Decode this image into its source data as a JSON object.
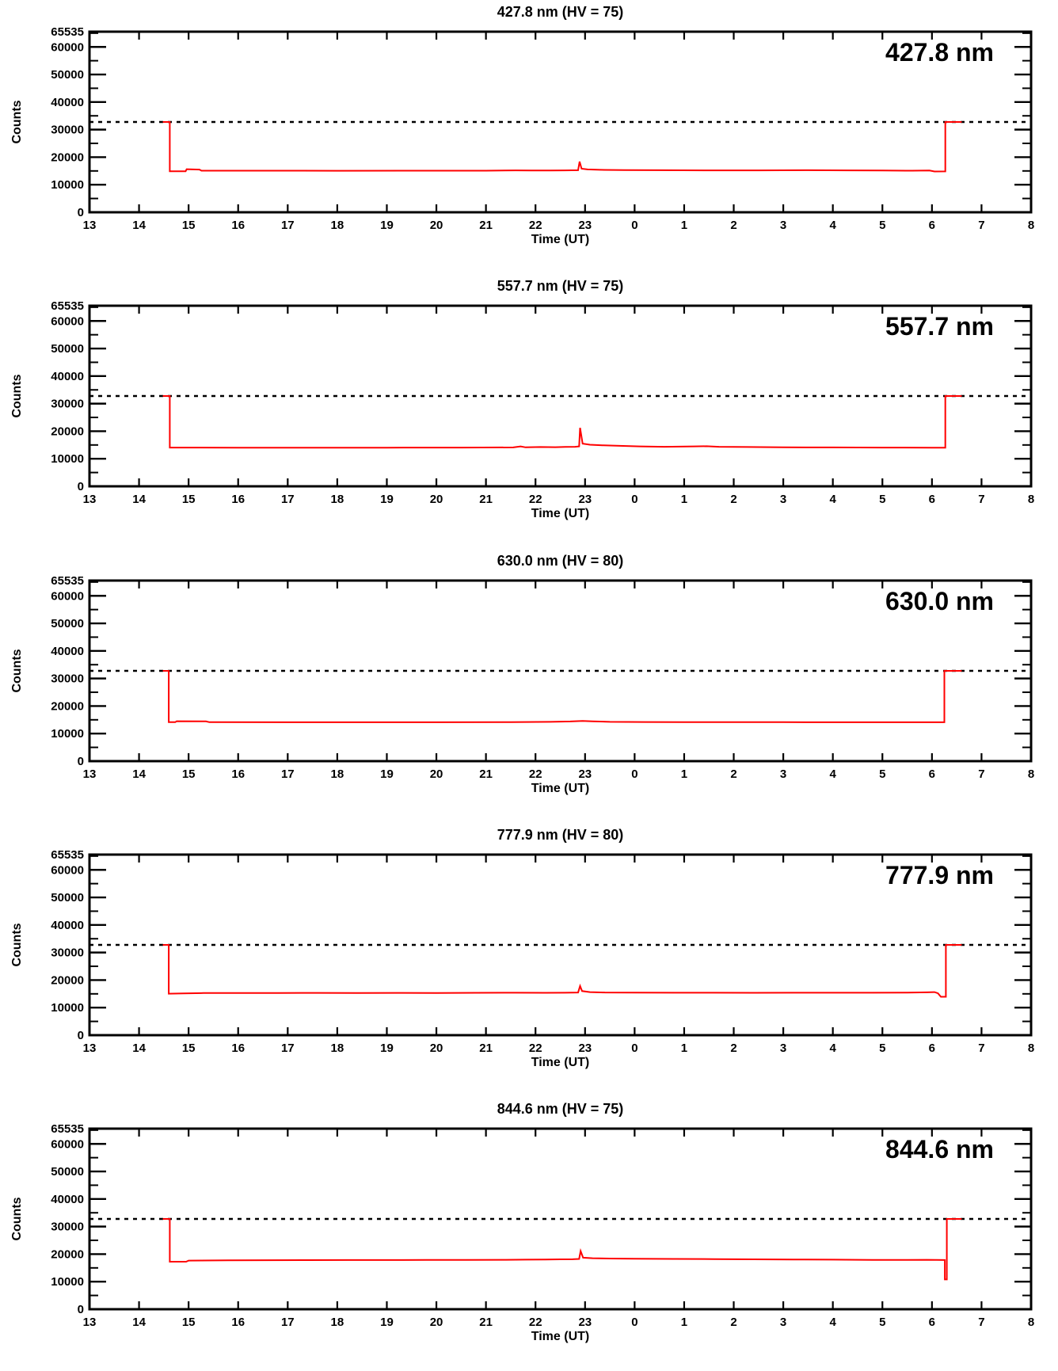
{
  "page": {
    "background": "#ffffff",
    "axis_color": "#000000",
    "dashed_line_color": "#000000"
  },
  "chart_data": [
    {
      "type": "line",
      "title": "427.8 nm (HV = 75)",
      "inplot_label": "427.8 nm",
      "wavelength_nm": 427.8,
      "hv": 75,
      "xlabel": "Time (UT)",
      "ylabel": "Counts",
      "x_tick_labels": [
        "13",
        "14",
        "15",
        "16",
        "17",
        "18",
        "19",
        "20",
        "21",
        "22",
        "23",
        "0",
        "1",
        "2",
        "3",
        "4",
        "5",
        "6",
        "7",
        "8"
      ],
      "x_hours": {
        "start": 13,
        "end": 32
      },
      "y_ticks": [
        0,
        10000,
        20000,
        30000,
        40000,
        50000,
        60000,
        65535
      ],
      "y_tick_labels": [
        "0",
        "10000",
        "20000",
        "30000",
        "40000",
        "50000",
        "60000",
        "65535"
      ],
      "ylim": [
        0,
        65535
      ],
      "y_minor_step": 5000,
      "grid": false,
      "saturation_line": 32767,
      "line_color": "#ff0000",
      "series": [
        {
          "name": "counts",
          "points": [
            [
              14.48,
              32767
            ],
            [
              14.62,
              32767
            ],
            [
              14.62,
              14900
            ],
            [
              14.94,
              14900
            ],
            [
              14.96,
              15650
            ],
            [
              15.22,
              15500
            ],
            [
              15.26,
              15100
            ],
            [
              16.5,
              15100
            ],
            [
              18,
              15060
            ],
            [
              19.5,
              15080
            ],
            [
              21,
              15100
            ],
            [
              21.6,
              15200
            ],
            [
              21.9,
              15150
            ],
            [
              22.3,
              15150
            ],
            [
              22.6,
              15200
            ],
            [
              22.86,
              15250
            ],
            [
              22.89,
              18400
            ],
            [
              22.93,
              15800
            ],
            [
              23.05,
              15550
            ],
            [
              23.3,
              15400
            ],
            [
              23.8,
              15300
            ],
            [
              24.5,
              15250
            ],
            [
              25.5,
              15200
            ],
            [
              26.5,
              15200
            ],
            [
              27.5,
              15250
            ],
            [
              28.3,
              15200
            ],
            [
              29,
              15150
            ],
            [
              29.6,
              15100
            ],
            [
              29.95,
              15150
            ],
            [
              30.05,
              14800
            ],
            [
              30.27,
              14820
            ],
            [
              30.27,
              32767
            ],
            [
              30.6,
              32767
            ]
          ]
        }
      ]
    },
    {
      "type": "line",
      "title": "557.7 nm (HV = 75)",
      "inplot_label": "557.7 nm",
      "wavelength_nm": 557.7,
      "hv": 75,
      "xlabel": "Time (UT)",
      "ylabel": "Counts",
      "x_tick_labels": [
        "13",
        "14",
        "15",
        "16",
        "17",
        "18",
        "19",
        "20",
        "21",
        "22",
        "23",
        "0",
        "1",
        "2",
        "3",
        "4",
        "5",
        "6",
        "7",
        "8"
      ],
      "x_hours": {
        "start": 13,
        "end": 32
      },
      "y_ticks": [
        0,
        10000,
        20000,
        30000,
        40000,
        50000,
        60000,
        65535
      ],
      "y_tick_labels": [
        "0",
        "10000",
        "20000",
        "30000",
        "40000",
        "50000",
        "60000",
        "65535"
      ],
      "ylim": [
        0,
        65535
      ],
      "y_minor_step": 5000,
      "grid": false,
      "saturation_line": 32767,
      "line_color": "#ff0000",
      "series": [
        {
          "name": "counts",
          "points": [
            [
              14.48,
              32767
            ],
            [
              14.62,
              32767
            ],
            [
              14.62,
              14050
            ],
            [
              16,
              14020
            ],
            [
              17.5,
              14000
            ],
            [
              19,
              14020
            ],
            [
              20.5,
              14050
            ],
            [
              21.55,
              14100
            ],
            [
              21.7,
              14500
            ],
            [
              21.8,
              14150
            ],
            [
              22.1,
              14250
            ],
            [
              22.4,
              14200
            ],
            [
              22.6,
              14300
            ],
            [
              22.8,
              14350
            ],
            [
              22.88,
              14500
            ],
            [
              22.9,
              21200
            ],
            [
              22.95,
              15500
            ],
            [
              23.1,
              15100
            ],
            [
              23.35,
              14900
            ],
            [
              23.7,
              14700
            ],
            [
              24.1,
              14500
            ],
            [
              24.6,
              14350
            ],
            [
              25.2,
              14500
            ],
            [
              25.45,
              14550
            ],
            [
              25.7,
              14350
            ],
            [
              26.3,
              14250
            ],
            [
              27,
              14150
            ],
            [
              28,
              14100
            ],
            [
              29,
              14060
            ],
            [
              30,
              14030
            ],
            [
              30.27,
              14030
            ],
            [
              30.27,
              32767
            ],
            [
              30.6,
              32767
            ]
          ]
        }
      ]
    },
    {
      "type": "line",
      "title": "630.0 nm (HV = 80)",
      "inplot_label": "630.0 nm",
      "wavelength_nm": 630.0,
      "hv": 80,
      "xlabel": "Time (UT)",
      "ylabel": "Counts",
      "x_tick_labels": [
        "13",
        "14",
        "15",
        "16",
        "17",
        "18",
        "19",
        "20",
        "21",
        "22",
        "23",
        "0",
        "1",
        "2",
        "3",
        "4",
        "5",
        "6",
        "7",
        "8"
      ],
      "x_hours": {
        "start": 13,
        "end": 32
      },
      "y_ticks": [
        0,
        10000,
        20000,
        30000,
        40000,
        50000,
        60000,
        65535
      ],
      "y_tick_labels": [
        "0",
        "10000",
        "20000",
        "30000",
        "40000",
        "50000",
        "60000",
        "65535"
      ],
      "ylim": [
        0,
        65535
      ],
      "y_minor_step": 5000,
      "grid": false,
      "saturation_line": 32767,
      "line_color": "#ff0000",
      "series": [
        {
          "name": "counts",
          "points": [
            [
              14.48,
              32767
            ],
            [
              14.6,
              32767
            ],
            [
              14.6,
              14150
            ],
            [
              14.73,
              14150
            ],
            [
              14.76,
              14480
            ],
            [
              15.35,
              14420
            ],
            [
              15.42,
              14150
            ],
            [
              17,
              14120
            ],
            [
              18.5,
              14100
            ],
            [
              20,
              14120
            ],
            [
              21.5,
              14150
            ],
            [
              22.3,
              14250
            ],
            [
              22.7,
              14400
            ],
            [
              22.95,
              14600
            ],
            [
              23.15,
              14450
            ],
            [
              23.5,
              14250
            ],
            [
              24.2,
              14200
            ],
            [
              25,
              14180
            ],
            [
              26,
              14150
            ],
            [
              27,
              14130
            ],
            [
              28,
              14120
            ],
            [
              29,
              14120
            ],
            [
              30.25,
              14120
            ],
            [
              30.25,
              32767
            ],
            [
              30.6,
              32767
            ]
          ]
        }
      ]
    },
    {
      "type": "line",
      "title": "777.9 nm (HV = 80)",
      "inplot_label": "777.9 nm",
      "wavelength_nm": 777.9,
      "hv": 80,
      "xlabel": "Time (UT)",
      "ylabel": "Counts",
      "x_tick_labels": [
        "13",
        "14",
        "15",
        "16",
        "17",
        "18",
        "19",
        "20",
        "21",
        "22",
        "23",
        "0",
        "1",
        "2",
        "3",
        "4",
        "5",
        "6",
        "7",
        "8"
      ],
      "x_hours": {
        "start": 13,
        "end": 32
      },
      "y_ticks": [
        0,
        10000,
        20000,
        30000,
        40000,
        50000,
        60000,
        65535
      ],
      "y_tick_labels": [
        "0",
        "10000",
        "20000",
        "30000",
        "40000",
        "50000",
        "60000",
        "65535"
      ],
      "ylim": [
        0,
        65535
      ],
      "y_minor_step": 5000,
      "grid": false,
      "saturation_line": 32767,
      "line_color": "#ff0000",
      "series": [
        {
          "name": "counts",
          "points": [
            [
              14.48,
              32767
            ],
            [
              14.6,
              32767
            ],
            [
              14.6,
              15050
            ],
            [
              14.9,
              15150
            ],
            [
              15.3,
              15300
            ],
            [
              16,
              15320
            ],
            [
              16.8,
              15280
            ],
            [
              17.6,
              15350
            ],
            [
              18.4,
              15300
            ],
            [
              19.2,
              15350
            ],
            [
              20,
              15320
            ],
            [
              20.8,
              15380
            ],
            [
              21.6,
              15400
            ],
            [
              22.2,
              15380
            ],
            [
              22.6,
              15420
            ],
            [
              22.86,
              15500
            ],
            [
              22.9,
              17850
            ],
            [
              22.94,
              16000
            ],
            [
              23.1,
              15650
            ],
            [
              23.4,
              15500
            ],
            [
              24,
              15450
            ],
            [
              24.8,
              15400
            ],
            [
              25.6,
              15420
            ],
            [
              26.4,
              15380
            ],
            [
              27.2,
              15420
            ],
            [
              28,
              15400
            ],
            [
              28.8,
              15420
            ],
            [
              29.5,
              15450
            ],
            [
              29.9,
              15550
            ],
            [
              30.05,
              15650
            ],
            [
              30.12,
              15200
            ],
            [
              30.18,
              13950
            ],
            [
              30.28,
              13950
            ],
            [
              30.28,
              32767
            ],
            [
              30.6,
              32767
            ]
          ]
        }
      ]
    },
    {
      "type": "line",
      "title": "844.6 nm (HV = 75)",
      "inplot_label": "844.6 nm",
      "wavelength_nm": 844.6,
      "hv": 75,
      "xlabel": "Time (UT)",
      "ylabel": "Counts",
      "x_tick_labels": [
        "13",
        "14",
        "15",
        "16",
        "17",
        "18",
        "19",
        "20",
        "21",
        "22",
        "23",
        "0",
        "1",
        "2",
        "3",
        "4",
        "5",
        "6",
        "7",
        "8"
      ],
      "x_hours": {
        "start": 13,
        "end": 32
      },
      "y_ticks": [
        0,
        10000,
        20000,
        30000,
        40000,
        50000,
        60000,
        65535
      ],
      "y_tick_labels": [
        "0",
        "10000",
        "20000",
        "30000",
        "40000",
        "50000",
        "60000",
        "65535"
      ],
      "ylim": [
        0,
        65535
      ],
      "y_minor_step": 5000,
      "grid": false,
      "saturation_line": 32767,
      "line_color": "#ff0000",
      "series": [
        {
          "name": "counts",
          "points": [
            [
              14.48,
              32767
            ],
            [
              14.62,
              32767
            ],
            [
              14.62,
              17250
            ],
            [
              14.95,
              17250
            ],
            [
              15.0,
              17650
            ],
            [
              15.8,
              17750
            ],
            [
              16.6,
              17800
            ],
            [
              17.4,
              17820
            ],
            [
              18.2,
              17850
            ],
            [
              19,
              17850
            ],
            [
              19.8,
              17870
            ],
            [
              20.6,
              17900
            ],
            [
              21.4,
              17950
            ],
            [
              21.8,
              18000
            ],
            [
              22.2,
              18050
            ],
            [
              22.5,
              18100
            ],
            [
              22.75,
              18150
            ],
            [
              22.88,
              18250
            ],
            [
              22.91,
              21100
            ],
            [
              22.96,
              18700
            ],
            [
              23.15,
              18500
            ],
            [
              23.5,
              18400
            ],
            [
              24,
              18300
            ],
            [
              24.8,
              18250
            ],
            [
              25.6,
              18200
            ],
            [
              26.4,
              18100
            ],
            [
              27.2,
              18050
            ],
            [
              28,
              17980
            ],
            [
              28.8,
              17920
            ],
            [
              29.5,
              17880
            ],
            [
              29.9,
              17950
            ],
            [
              30.1,
              17880
            ],
            [
              30.26,
              17860
            ],
            [
              30.26,
              10800
            ],
            [
              30.3,
              10800
            ],
            [
              30.3,
              32767
            ],
            [
              30.6,
              32767
            ]
          ]
        }
      ]
    }
  ]
}
